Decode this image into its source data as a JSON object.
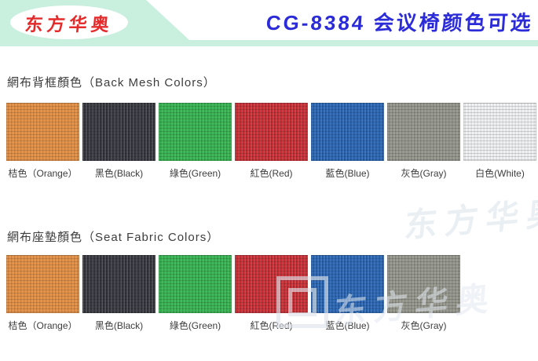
{
  "brand": {
    "logo_text": "东方华奥",
    "logo_color": "#e42a2b",
    "banner_color": "#c9efdf"
  },
  "header": {
    "title": "CG-8384 会议椅颜色可选",
    "title_color": "#2b2bd9"
  },
  "sections": [
    {
      "id": "back-mesh",
      "heading": "網布背框顏色（Back Mesh Colors）",
      "swatches": [
        {
          "label": "桔色（Orange）",
          "color": "#de8a3e"
        },
        {
          "label": "黑色(Black)",
          "color": "#2c2d36"
        },
        {
          "label": "綠色(Green)",
          "color": "#2fad49"
        },
        {
          "label": "紅色(Red)",
          "color": "#cd2127"
        },
        {
          "label": "藍色(Blue)",
          "color": "#1f5dac"
        },
        {
          "label": "灰色(Gray)",
          "color": "#8e9086"
        },
        {
          "label": "白色(White)",
          "color": "#f0f2f4"
        }
      ]
    },
    {
      "id": "seat-fabric",
      "heading": "網布座墊顏色（Seat Fabric Colors）",
      "swatches": [
        {
          "label": "桔色（Orange）",
          "color": "#de8a3e"
        },
        {
          "label": "黑色(Black)",
          "color": "#2c2d36"
        },
        {
          "label": "綠色(Green)",
          "color": "#2fad49"
        },
        {
          "label": "紅色(Red)",
          "color": "#cd2127"
        },
        {
          "label": "藍色(Blue)",
          "color": "#1f5dac"
        },
        {
          "label": "灰色(Gray)",
          "color": "#8e9086"
        }
      ]
    }
  ],
  "watermark": {
    "text": "东方华奥"
  }
}
